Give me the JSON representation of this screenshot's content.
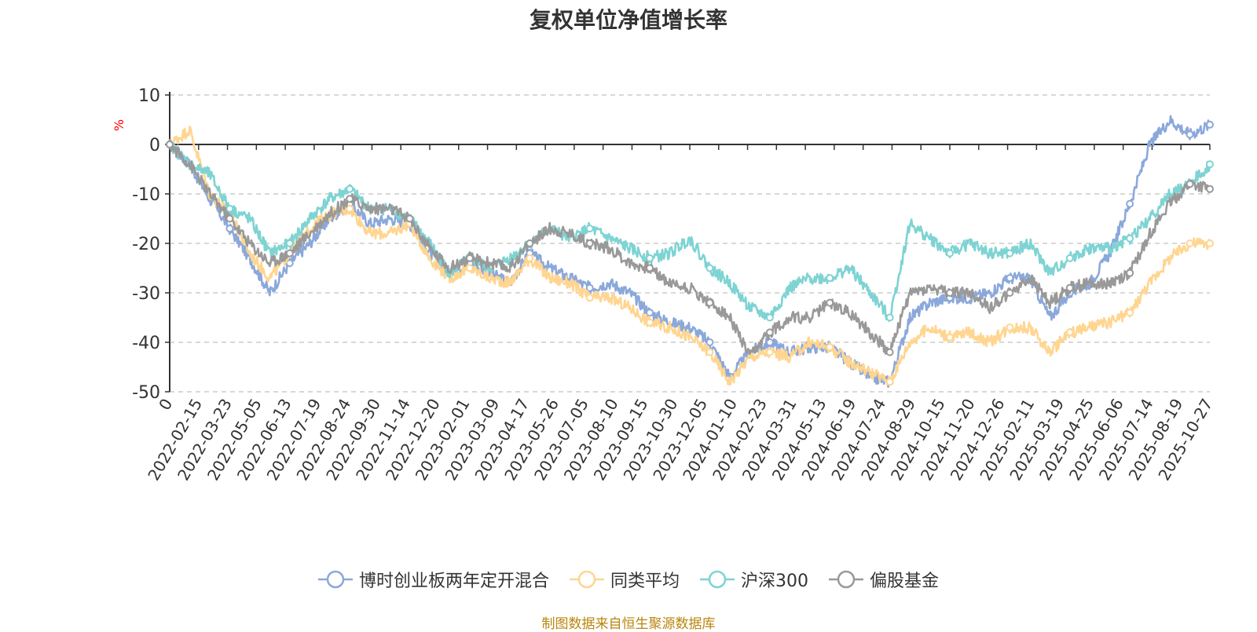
{
  "title": "复权单位净值增长率",
  "unit": "%",
  "source": "制图数据来自恒生聚源数据库",
  "colors": {
    "series0": "#8BA8DB",
    "series1": "#FFD590",
    "series2": "#7ED3D3",
    "series3": "#999999"
  },
  "chart_data": {
    "type": "line",
    "title": "复权单位净值增长率",
    "ylabel": "%",
    "ylim": [
      -50,
      10
    ],
    "yticks": [
      10,
      0,
      -10,
      -20,
      -30,
      -40,
      -50
    ],
    "x_tick_labels": [
      "0",
      "2022-02-15",
      "2022-03-23",
      "2022-05-05",
      "2022-06-13",
      "2022-07-19",
      "2022-08-24",
      "2022-09-30",
      "2022-11-14",
      "2022-12-20",
      "2023-02-01",
      "2023-03-09",
      "2023-04-17",
      "2023-05-26",
      "2023-07-05",
      "2023-08-10",
      "2023-09-15",
      "2023-10-30",
      "2023-12-05",
      "2024-01-10",
      "2024-02-23",
      "2024-03-31",
      "2024-05-13",
      "2024-06-19",
      "2024-07-24",
      "2024-08-29",
      "2024-10-15",
      "2024-11-20",
      "2024-12-26",
      "2025-02-11",
      "2025-03-19",
      "2025-04-25",
      "2025-06-06",
      "2025-07-14",
      "2025-08-19",
      "2025-10-27"
    ],
    "legend_position": "bottom",
    "grid": true,
    "series": [
      {
        "name": "博时创业板两年定开混合",
        "values": [
          0,
          -4,
          -11,
          -17,
          -23,
          -30,
          -24,
          -20,
          -15,
          -12,
          -16,
          -15,
          -16,
          -22,
          -26,
          -24,
          -26,
          -28,
          -22,
          -25,
          -27,
          -29,
          -28,
          -30,
          -34,
          -36,
          -37,
          -40,
          -47,
          -42,
          -40,
          -42,
          -41,
          -41,
          -44,
          -47,
          -48,
          -35,
          -32,
          -31,
          -31,
          -30,
          -27,
          -27,
          -35,
          -30,
          -28,
          -22,
          -12,
          0,
          5,
          2,
          4
        ]
      },
      {
        "name": "同类平均",
        "values": [
          0,
          3,
          -10,
          -14,
          -22,
          -27,
          -22,
          -17,
          -14,
          -13,
          -18,
          -18,
          -16,
          -23,
          -27,
          -25,
          -27,
          -28,
          -23,
          -27,
          -28,
          -31,
          -31,
          -33,
          -36,
          -37,
          -39,
          -42,
          -48,
          -43,
          -42,
          -43,
          -40,
          -41,
          -44,
          -46,
          -48,
          -40,
          -37,
          -39,
          -38,
          -40,
          -37,
          -37,
          -42,
          -38,
          -37,
          -36,
          -34,
          -28,
          -23,
          -20,
          -20
        ]
      },
      {
        "name": "沪深300",
        "values": [
          0,
          -4,
          -6,
          -13,
          -15,
          -22,
          -20,
          -15,
          -11,
          -9,
          -13,
          -13,
          -15,
          -20,
          -26,
          -23,
          -25,
          -23,
          -20,
          -17,
          -19,
          -17,
          -19,
          -21,
          -23,
          -22,
          -19,
          -25,
          -28,
          -33,
          -35,
          -29,
          -27,
          -27,
          -25,
          -30,
          -35,
          -16,
          -19,
          -22,
          -20,
          -22,
          -22,
          -20,
          -26,
          -23,
          -21,
          -21,
          -19,
          -15,
          -10,
          -8,
          -4
        ]
      },
      {
        "name": "偏股基金",
        "values": [
          0,
          -4,
          -10,
          -15,
          -20,
          -24,
          -22,
          -18,
          -14,
          -11,
          -13,
          -13,
          -15,
          -21,
          -25,
          -23,
          -24,
          -25,
          -20,
          -17,
          -18,
          -20,
          -21,
          -24,
          -25,
          -28,
          -29,
          -32,
          -35,
          -43,
          -38,
          -35,
          -35,
          -32,
          -34,
          -38,
          -42,
          -30,
          -29,
          -30,
          -30,
          -33,
          -30,
          -27,
          -32,
          -29,
          -28,
          -28,
          -26,
          -18,
          -12,
          -8,
          -9
        ]
      }
    ]
  },
  "legend": [
    {
      "label": "博时创业板两年定开混合",
      "color": "#8BA8DB"
    },
    {
      "label": "同类平均",
      "color": "#FFD590"
    },
    {
      "label": "沪深300",
      "color": "#7ED3D3"
    },
    {
      "label": "偏股基金",
      "color": "#999999"
    }
  ]
}
